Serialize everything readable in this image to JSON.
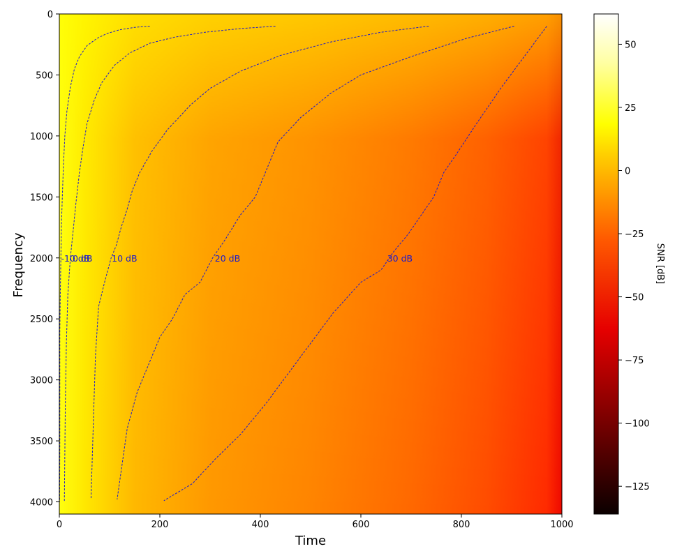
{
  "chart_data": {
    "type": "heatmap",
    "xlabel": "Time",
    "ylabel": "Frequency",
    "xlim": [
      0,
      1000
    ],
    "ylim": [
      4100,
      0
    ],
    "x_ticks": [
      0,
      200,
      400,
      600,
      800,
      1000
    ],
    "y_ticks": [
      0,
      500,
      1000,
      1500,
      2000,
      2500,
      3000,
      3500,
      4000
    ],
    "colormap": "hot",
    "colorbar": {
      "label": "SNR [dB]",
      "range": [
        -136,
        62
      ],
      "ticks": [
        50,
        25,
        0,
        -25,
        -50,
        -75,
        -100,
        -125
      ]
    },
    "contours": [
      {
        "label": "-10 dB",
        "label_pos": [
          2,
          2000
        ],
        "x": [
          180,
          150,
          120,
          95,
          75,
          55,
          40,
          30,
          22,
          15,
          11,
          8,
          6,
          4,
          3,
          2,
          1,
          1,
          1,
          0.5
        ],
        "y": [
          100,
          110,
          130,
          160,
          200,
          260,
          350,
          450,
          600,
          800,
          1000,
          1250,
          1500,
          1750,
          2000,
          2300,
          2600,
          3000,
          3500,
          4000
        ]
      },
      {
        "label": "0 dB",
        "label_pos": [
          25,
          2000
        ],
        "x": [
          430,
          360,
          290,
          230,
          180,
          140,
          110,
          85,
          70,
          55,
          47,
          40,
          33,
          27,
          22,
          17,
          14,
          12,
          10
        ],
        "y": [
          100,
          120,
          150,
          190,
          240,
          320,
          420,
          560,
          700,
          900,
          1100,
          1300,
          1550,
          1800,
          2000,
          2300,
          2700,
          3200,
          4000
        ]
      },
      {
        "label": "10 dB",
        "label_pos": [
          103,
          2000
        ],
        "x": [
          735,
          640,
          540,
          440,
          360,
          300,
          260,
          215,
          185,
          160,
          145,
          135,
          123,
          113,
          103,
          90,
          78,
          72,
          68,
          63
        ],
        "y": [
          100,
          150,
          230,
          340,
          470,
          610,
          750,
          950,
          1120,
          1300,
          1450,
          1600,
          1750,
          1900,
          2000,
          2200,
          2400,
          2800,
          3300,
          3980
        ]
      },
      {
        "label": "20 dB",
        "label_pos": [
          308,
          2000
        ],
        "x": [
          905,
          810,
          700,
          600,
          540,
          480,
          435,
          410,
          390,
          360,
          330,
          305,
          280,
          250,
          225,
          200,
          185,
          170,
          155,
          135,
          115
        ],
        "y": [
          100,
          200,
          350,
          500,
          650,
          850,
          1050,
          1300,
          1500,
          1650,
          1850,
          2000,
          2200,
          2300,
          2500,
          2650,
          2800,
          2950,
          3100,
          3400,
          3980
        ]
      },
      {
        "label": "30 dB",
        "label_pos": [
          651,
          2000
        ],
        "x": [
          970,
          925,
          880,
          830,
          790,
          765,
          745,
          720,
          695,
          665,
          640,
          600,
          545,
          500,
          455,
          410,
          360,
          310,
          265,
          208
        ],
        "y": [
          100,
          350,
          600,
          900,
          1150,
          1300,
          1500,
          1650,
          1800,
          1950,
          2100,
          2200,
          2450,
          2700,
          2950,
          3200,
          3450,
          3650,
          3850,
          3990
        ]
      }
    ]
  }
}
